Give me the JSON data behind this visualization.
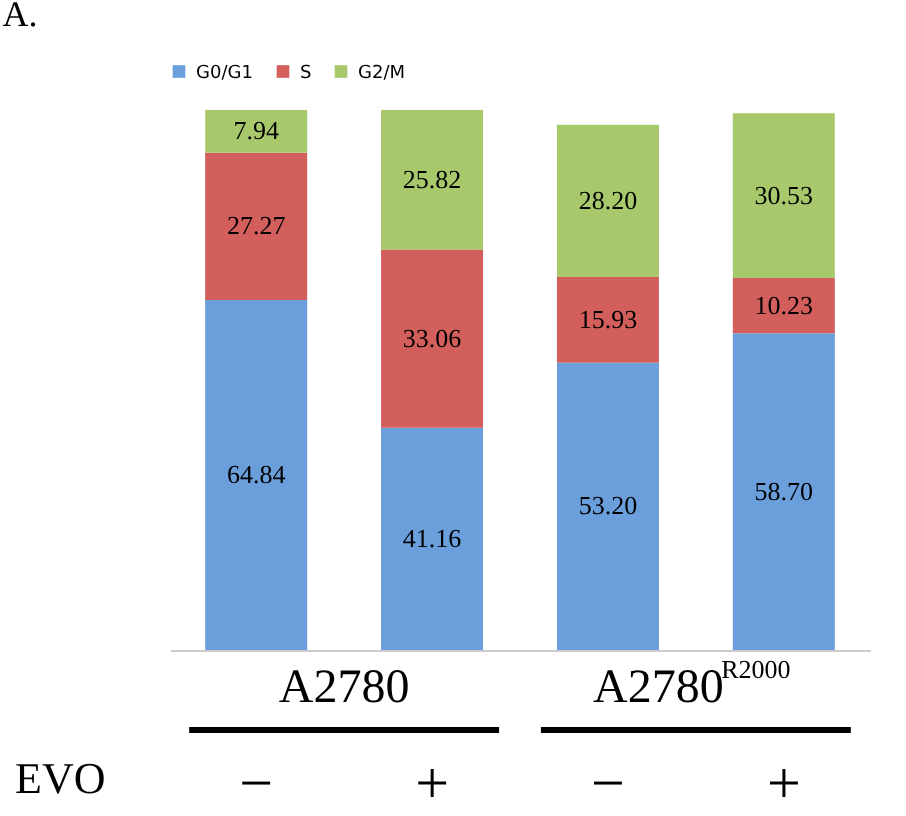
{
  "chart_data": {
    "type": "bar",
    "stacked": true,
    "categories": [
      "−",
      "+",
      "−",
      "+"
    ],
    "xlabel": "EVO",
    "series": [
      {
        "name": "G0/G1",
        "color": "#6a9fdc",
        "values": [
          64.84,
          41.16,
          53.2,
          58.7
        ],
        "value_labels": [
          "64.84",
          "41.16",
          "53.20",
          "58.70"
        ]
      },
      {
        "name": "S",
        "color": "#d25f5c",
        "values": [
          27.27,
          33.06,
          15.93,
          10.23
        ],
        "value_labels": [
          "27.27",
          "33.06",
          "15.93",
          "10.23"
        ]
      },
      {
        "name": "G2/M",
        "color": "#a8c86c",
        "values": [
          7.94,
          25.82,
          28.2,
          30.53
        ],
        "value_labels": [
          "7.94",
          "25.82",
          "28.20",
          "30.53"
        ]
      }
    ],
    "annotations": [
      "A.",
      "A2780",
      "A2780$^{R2000}$"
    ],
    "tick_labels": "x",
    "legend": "top",
    "grid": false
  }
}
